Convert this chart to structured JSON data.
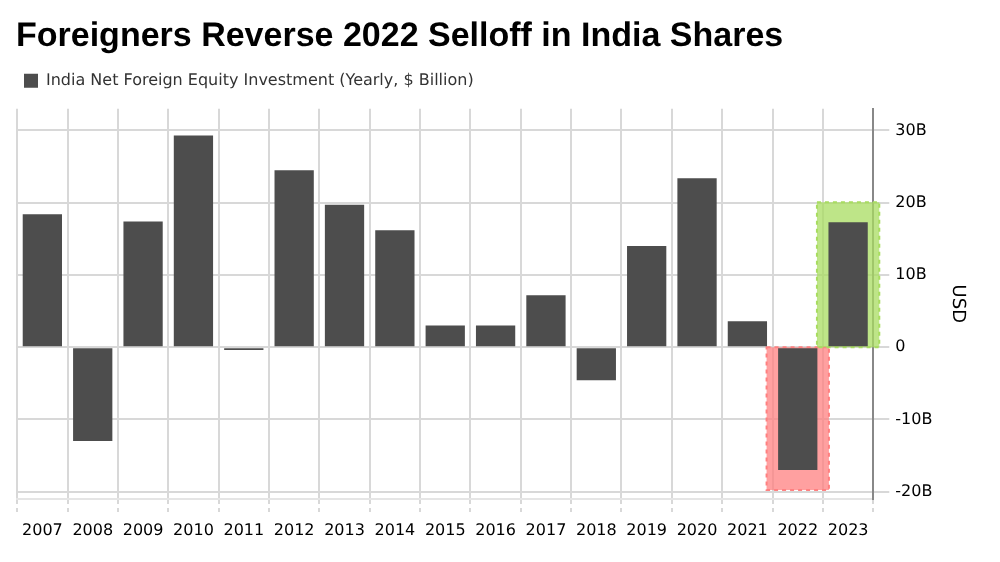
{
  "chart_data": {
    "type": "bar",
    "title": "Foreigners Reverse 2022 Selloff in India Shares",
    "categories": [
      "2007",
      "2008",
      "2009",
      "2010",
      "2011",
      "2012",
      "2013",
      "2014",
      "2015",
      "2016",
      "2017",
      "2018",
      "2019",
      "2020",
      "2021",
      "2022",
      "2023"
    ],
    "series": [
      {
        "name": "India Net Foreign Equity Investment (Yearly, $ Billion)",
        "color": "#4d4d4d",
        "values": [
          18.4,
          -13,
          17.4,
          29.3,
          -0.4,
          24.5,
          19.7,
          16.2,
          3,
          3,
          7.2,
          -4.6,
          14,
          23.4,
          3.6,
          -17,
          17.3
        ]
      }
    ],
    "ylabel": "USD",
    "ylim": [
      -21,
      33
    ],
    "yticks": [
      {
        "value": -20,
        "label": "-20B"
      },
      {
        "value": -10,
        "label": "-10B"
      },
      0,
      {
        "value": 10,
        "label": "10B"
      },
      {
        "value": 20,
        "label": "20B"
      },
      {
        "value": 30,
        "label": "30B"
      }
    ],
    "bands": [
      {
        "axis": "x",
        "from": "2022",
        "to": "2022",
        "color": "#ff8080"
      },
      {
        "axis": "x",
        "from": "2023",
        "to": "2023",
        "color": "#a8dc60"
      }
    ],
    "grid": true,
    "legend": "top left"
  }
}
